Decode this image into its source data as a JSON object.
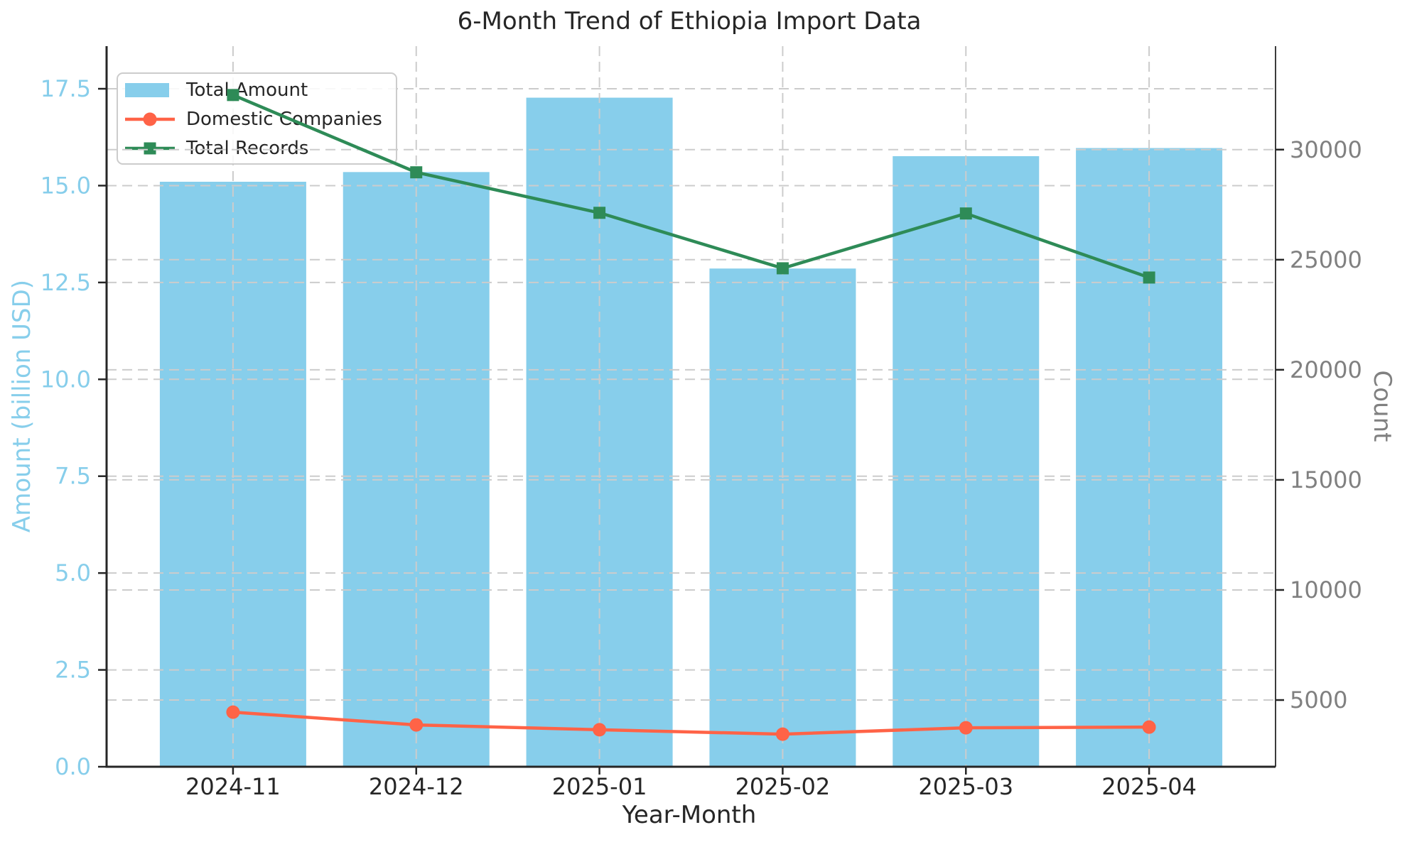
{
  "title": "6-Month Trend of Ethiopia Import Data",
  "axes": {
    "xlabel": "Year-Month",
    "ylabel_left": "Amount (billion USD)",
    "ylabel_right": "Count",
    "ytick_labels_left": [
      "0.0",
      "2.5",
      "5.0",
      "7.5",
      "10.0",
      "12.5",
      "15.0",
      "17.5"
    ],
    "ytick_labels_right": [
      "5000",
      "10000",
      "15000",
      "20000",
      "25000",
      "30000"
    ]
  },
  "style": {
    "background": "#ffffff",
    "grid_color": "#cccccc",
    "spine_color": "#262626",
    "text_color": "#262626",
    "left_axis_color": "#87CEEB",
    "right_axis_color": "#808080",
    "legend_border": "#cccccc",
    "legend_bg": "#ffffff"
  },
  "chart_data": {
    "type": "bar",
    "subtype": "combo-bar-line-twin-axis",
    "title": "6-Month Trend of Ethiopia Import Data",
    "xlabel": "Year-Month",
    "ylabel": "Amount (billion USD)",
    "ylabel_right": "Count",
    "categories": [
      "2024-11",
      "2024-12",
      "2025-01",
      "2025-02",
      "2025-03",
      "2025-04"
    ],
    "series": [
      {
        "name": "Total Amount",
        "type": "bar",
        "axis": "left",
        "color": "#87CEEB",
        "values": [
          15.1,
          15.35,
          17.27,
          12.86,
          15.76,
          15.97
        ]
      },
      {
        "name": "Domestic Companies",
        "type": "line",
        "marker": "circle",
        "axis": "right",
        "color": "#FF6347",
        "values": [
          4450,
          3870,
          3650,
          3450,
          3740,
          3770
        ]
      },
      {
        "name": "Total Records",
        "type": "line",
        "marker": "square",
        "axis": "right",
        "color": "#2E8B57",
        "values": [
          32480,
          28970,
          27130,
          24610,
          27100,
          24190
        ]
      }
    ],
    "ylim_left": [
      0,
      18.6
    ],
    "ylim_right": [
      1970,
      34700
    ],
    "xlim": [
      -0.69,
      5.69
    ],
    "yticks_left": [
      0.0,
      2.5,
      5.0,
      7.5,
      10.0,
      12.5,
      15.0,
      17.5
    ],
    "yticks_right": [
      5000,
      10000,
      15000,
      20000,
      25000,
      30000
    ],
    "grid": true,
    "grid_style": "dashed",
    "legend_position": "upper left"
  }
}
